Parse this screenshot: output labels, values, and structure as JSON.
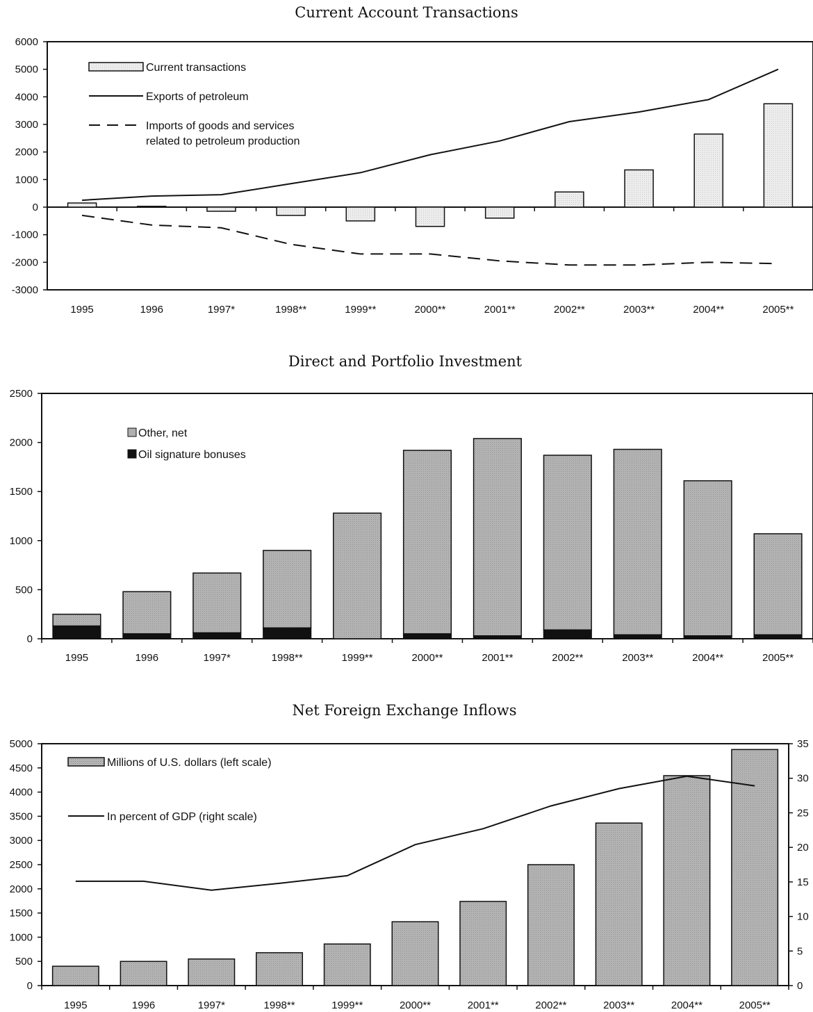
{
  "chart_data": [
    {
      "type": "bar",
      "title": "Current Account Transactions",
      "categories": [
        "1995",
        "1996",
        "1997*",
        "1998**",
        "1999**",
        "2000**",
        "2001**",
        "2002**",
        "2003**",
        "2004**",
        "2005**"
      ],
      "ylim": [
        -3000,
        6000
      ],
      "yticks": [
        6000,
        5000,
        4000,
        3000,
        2000,
        1000,
        0,
        -1000,
        -2000,
        -3000
      ],
      "legend_position": "top-left",
      "series": [
        {
          "name": "Current transactions",
          "kind": "bar",
          "color": "#ececec",
          "values": [
            150,
            30,
            -150,
            -300,
            -500,
            -700,
            -400,
            550,
            1350,
            2650,
            3750
          ]
        },
        {
          "name": "Exports of petroleum",
          "kind": "line",
          "style": "solid",
          "color": "#111111",
          "values": [
            250,
            400,
            450,
            850,
            1250,
            1900,
            2400,
            3100,
            3450,
            3900,
            5000
          ]
        },
        {
          "name": "Imports of goods and services",
          "name_line2": "related to petroleum production",
          "kind": "line",
          "style": "dashed",
          "color": "#111111",
          "values": [
            -300,
            -650,
            -750,
            -1350,
            -1700,
            -1700,
            -1950,
            -2100,
            -2100,
            -2000,
            -2050
          ]
        }
      ]
    },
    {
      "type": "bar",
      "title": "Direct and Portfolio Investment",
      "categories": [
        "1995",
        "1996",
        "1997*",
        "1998**",
        "1999**",
        "2000**",
        "2001**",
        "2002**",
        "2003**",
        "2004**",
        "2005**"
      ],
      "ylim": [
        0,
        2500
      ],
      "yticks": [
        2500,
        2000,
        1500,
        1000,
        500,
        0
      ],
      "stacked": true,
      "legend_position": "top-left",
      "series": [
        {
          "name": "Oil signature bonuses",
          "color": "#111111",
          "values": [
            130,
            50,
            60,
            110,
            0,
            50,
            30,
            90,
            40,
            30,
            40
          ]
        },
        {
          "name": "Other, net",
          "color": "#b2b2b2",
          "values": [
            120,
            430,
            610,
            790,
            1280,
            1870,
            2010,
            1780,
            1890,
            1580,
            1030
          ]
        }
      ]
    },
    {
      "type": "bar",
      "title": "Net Foreign Exchange Inflows",
      "categories": [
        "1995",
        "1996",
        "1997*",
        "1998**",
        "1999**",
        "2000**",
        "2001**",
        "2002**",
        "2003**",
        "2004**",
        "2005**"
      ],
      "ylim": [
        0,
        5000
      ],
      "yticks": [
        5000,
        4500,
        4000,
        3500,
        3000,
        2500,
        2000,
        1500,
        1000,
        500,
        0
      ],
      "ylim_right": [
        0,
        35
      ],
      "yticks_right": [
        35,
        30,
        25,
        20,
        15,
        10,
        5,
        0
      ],
      "legend_position": "top-left",
      "series": [
        {
          "name": "Millions of U.S. dollars (left scale)",
          "kind": "bar",
          "axis": "left",
          "color": "#b2b2b2",
          "values": [
            400,
            500,
            550,
            680,
            860,
            1320,
            1740,
            2500,
            3360,
            4340,
            4880
          ]
        },
        {
          "name": "In percent of GDP (right scale)",
          "kind": "line",
          "axis": "right",
          "color": "#111111",
          "values": [
            15.1,
            15.1,
            13.8,
            14.8,
            15.9,
            20.4,
            22.7,
            26.0,
            28.5,
            30.3,
            28.9
          ]
        }
      ]
    }
  ]
}
